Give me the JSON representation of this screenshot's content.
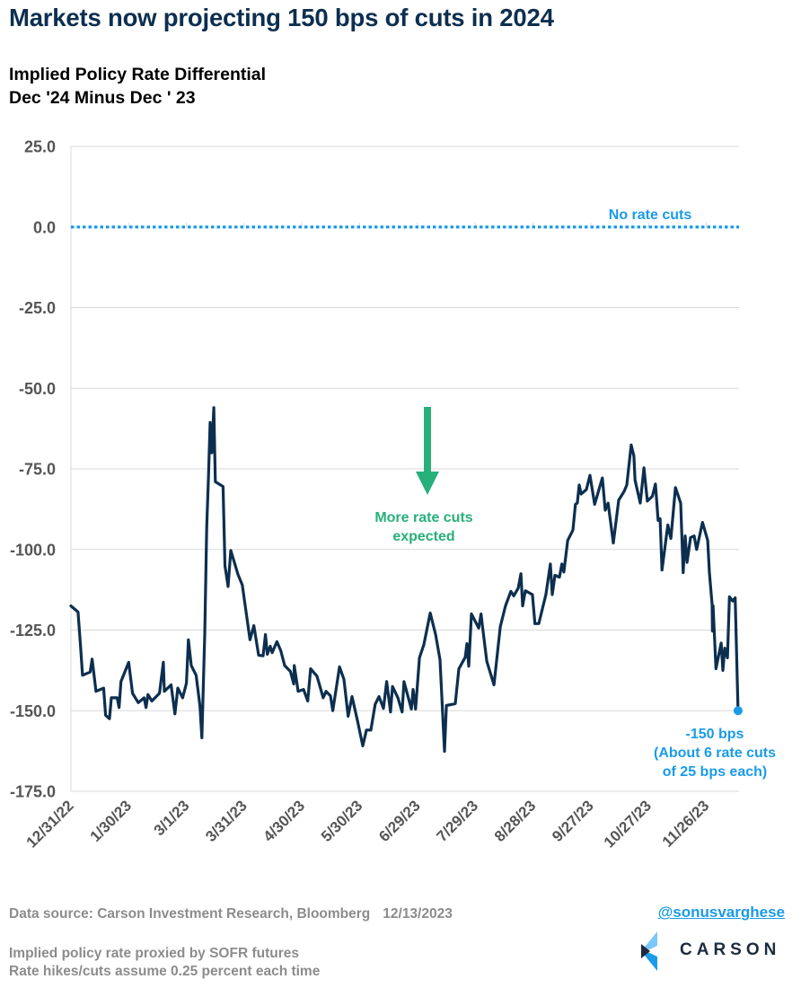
{
  "header": {
    "title": "Markets now projecting 150 bps of cuts in 2024",
    "subtitle_line1": "Implied Policy Rate Differential",
    "subtitle_line2": "Dec '24 Minus Dec ' 23"
  },
  "footer": {
    "source": "Data source: Carson Investment Research, Bloomberg",
    "date": "12/13/2023",
    "note1": "Implied policy rate proxied by SOFR futures",
    "note2": "Rate hikes/cuts assume 0.25 percent each time",
    "handle": "@sonusvarghese",
    "logo_text": "CARSON",
    "logo_icon": "carson-chevron-logo-icon"
  },
  "colors": {
    "title": "#0d2f4f",
    "line": "#0d2f4f",
    "reference": "#1a9be8",
    "annotation_green": "#27b07a",
    "gridline": "#d9d9d9",
    "tick_text": "#555555"
  },
  "chart_data": {
    "type": "line",
    "title": "Implied Policy Rate Differential",
    "subtitle": "Dec '24 Minus Dec ' 23",
    "xlabel": "",
    "ylabel": "",
    "x_unit": "days since 12/31/22",
    "start_date": "12/31/22",
    "end_date": "12/13/23",
    "xlim": [
      0,
      347
    ],
    "ylim": [
      -175,
      25
    ],
    "grid": true,
    "yticks": [
      25,
      0,
      -25,
      -50,
      -75,
      -100,
      -125,
      -150,
      -175
    ],
    "ytick_labels": [
      "25.0",
      "0.0",
      "-25.0",
      "-50.0",
      "-75.0",
      "-100.0",
      "-125.0",
      "-150.0",
      "-175.0"
    ],
    "xticks": [
      0,
      30,
      60,
      90,
      120,
      150,
      180,
      210,
      240,
      270,
      300,
      330
    ],
    "xtick_labels": [
      "12/31/22",
      "1/30/23",
      "3/1/23",
      "3/31/23",
      "4/30/23",
      "5/30/23",
      "6/29/23",
      "7/29/23",
      "8/28/23",
      "9/27/23",
      "10/27/23",
      "11/26/23"
    ],
    "reference_line": {
      "y": 0,
      "label": "No rate cuts",
      "style": "dotted"
    },
    "annotations": [
      {
        "text_line1": "More rate cuts",
        "text_line2": "expected",
        "type": "arrow-down"
      },
      {
        "text_line1": "-150 bps",
        "text_line2": "(About 6 rate cuts",
        "text_line3": "of 25 bps each)",
        "x": 346.5,
        "y": -150
      }
    ],
    "series": [
      {
        "name": "Implied Policy Rate Differential (bps)",
        "points": [
          [
            0,
            -117.5
          ],
          [
            3.7,
            -119.4
          ],
          [
            5,
            -130
          ],
          [
            6,
            -139
          ],
          [
            10,
            -138
          ],
          [
            11,
            -134
          ],
          [
            13,
            -144
          ],
          [
            17,
            -143
          ],
          [
            18,
            -151.4
          ],
          [
            20,
            -152.5
          ],
          [
            21,
            -146
          ],
          [
            24,
            -146
          ],
          [
            25,
            -149
          ],
          [
            26,
            -141
          ],
          [
            30,
            -135
          ],
          [
            32,
            -144.6
          ],
          [
            35,
            -147.5
          ],
          [
            38,
            -146
          ],
          [
            39,
            -149
          ],
          [
            40,
            -145
          ],
          [
            42,
            -147
          ],
          [
            46,
            -144.6
          ],
          [
            48,
            -135
          ],
          [
            48.5,
            -144
          ],
          [
            52,
            -142
          ],
          [
            54,
            -151
          ],
          [
            55.5,
            -143
          ],
          [
            58,
            -146
          ],
          [
            60,
            -141.5
          ],
          [
            61,
            -128
          ],
          [
            62.5,
            -136
          ],
          [
            65,
            -139
          ],
          [
            67,
            -148.6
          ],
          [
            68,
            -158.4
          ],
          [
            69.5,
            -126.4
          ],
          [
            70.5,
            -93
          ],
          [
            71.4,
            -78
          ],
          [
            72.3,
            -60.6
          ],
          [
            73.2,
            -70
          ],
          [
            74.2,
            -56
          ],
          [
            75,
            -79
          ],
          [
            79,
            -80.5
          ],
          [
            80,
            -105
          ],
          [
            81.6,
            -111.5
          ],
          [
            83,
            -100.3
          ],
          [
            86.8,
            -107.8
          ],
          [
            89,
            -111
          ],
          [
            93,
            -128
          ],
          [
            95,
            -123.6
          ],
          [
            97.5,
            -132.8
          ],
          [
            99.8,
            -133
          ],
          [
            101,
            -126.4
          ],
          [
            102,
            -132.5
          ],
          [
            103.5,
            -130
          ],
          [
            104.5,
            -132
          ],
          [
            107,
            -128.6
          ],
          [
            109,
            -131.4
          ],
          [
            111,
            -136
          ],
          [
            114,
            -137.8
          ],
          [
            115.7,
            -141.7
          ],
          [
            116,
            -136
          ],
          [
            118,
            -144
          ],
          [
            120.8,
            -143.4
          ],
          [
            123,
            -147
          ],
          [
            124.5,
            -137
          ],
          [
            127.8,
            -139.3
          ],
          [
            131,
            -146
          ],
          [
            132.5,
            -144
          ],
          [
            134.8,
            -145.4
          ],
          [
            136,
            -150
          ],
          [
            139.5,
            -136.4
          ],
          [
            141.8,
            -140.3
          ],
          [
            144,
            -151.7
          ],
          [
            146,
            -145.6
          ],
          [
            148.8,
            -153
          ],
          [
            151.6,
            -160.9
          ],
          [
            153.5,
            -156
          ],
          [
            155.8,
            -156
          ],
          [
            158,
            -148
          ],
          [
            160,
            -145.6
          ],
          [
            162.3,
            -149.3
          ],
          [
            164,
            -141
          ],
          [
            166,
            -150.4
          ],
          [
            167,
            -142.5
          ],
          [
            169.8,
            -146
          ],
          [
            172,
            -150.4
          ],
          [
            173,
            -141
          ],
          [
            176.8,
            -149.5
          ],
          [
            177.7,
            -143.4
          ],
          [
            179,
            -149.5
          ],
          [
            181,
            -133.6
          ],
          [
            183.3,
            -129.5
          ],
          [
            186.6,
            -119.7
          ],
          [
            189.4,
            -126.4
          ],
          [
            191.7,
            -134.2
          ],
          [
            194,
            -162.6
          ],
          [
            195,
            -148.4
          ],
          [
            199.6,
            -147.8
          ],
          [
            201.5,
            -137
          ],
          [
            204.8,
            -133.4
          ],
          [
            205.7,
            -129.2
          ],
          [
            206.6,
            -136.2
          ],
          [
            208,
            -120
          ],
          [
            211.8,
            -124.4
          ],
          [
            213,
            -120
          ],
          [
            214,
            -125
          ],
          [
            216,
            -134.7
          ],
          [
            219.7,
            -142
          ],
          [
            223,
            -124
          ],
          [
            225.7,
            -117.5
          ],
          [
            228.5,
            -113
          ],
          [
            230,
            -114.4
          ],
          [
            232.3,
            -112
          ],
          [
            233.7,
            -107.5
          ],
          [
            234.6,
            -117.5
          ],
          [
            236,
            -112.8
          ],
          [
            239.7,
            -114
          ],
          [
            241,
            -123
          ],
          [
            243,
            -123
          ],
          [
            246.7,
            -114
          ],
          [
            249,
            -104.5
          ],
          [
            250,
            -114
          ],
          [
            251.4,
            -108
          ],
          [
            253.7,
            -108.6
          ],
          [
            255,
            -104.5
          ],
          [
            256,
            -107
          ],
          [
            258,
            -97.2
          ],
          [
            260.7,
            -94
          ],
          [
            262,
            -86
          ],
          [
            263,
            -85.6
          ],
          [
            264,
            -80
          ],
          [
            265,
            -82.8
          ],
          [
            267.7,
            -81.4
          ],
          [
            269.6,
            -77
          ],
          [
            272,
            -86
          ],
          [
            276,
            -77.8
          ],
          [
            277.5,
            -87.8
          ],
          [
            279,
            -85.6
          ],
          [
            281.7,
            -98
          ],
          [
            284.5,
            -84.7
          ],
          [
            287.3,
            -82
          ],
          [
            288.7,
            -80
          ],
          [
            291,
            -67.6
          ],
          [
            292.4,
            -71
          ],
          [
            293,
            -78.5
          ],
          [
            295.7,
            -85.6
          ],
          [
            297.6,
            -74.7
          ],
          [
            299.4,
            -85
          ],
          [
            302,
            -83.5
          ],
          [
            303.6,
            -79.7
          ],
          [
            305,
            -91
          ],
          [
            306,
            -90.5
          ],
          [
            307,
            -106.4
          ],
          [
            310,
            -92.4
          ],
          [
            311.6,
            -96.6
          ],
          [
            314,
            -80.8
          ],
          [
            316.7,
            -85.6
          ],
          [
            318,
            -107.2
          ],
          [
            319,
            -95.8
          ],
          [
            320,
            -104
          ],
          [
            321.8,
            -96.3
          ],
          [
            323.7,
            -95.8
          ],
          [
            325,
            -100
          ],
          [
            328,
            -91.6
          ],
          [
            330.7,
            -97.2
          ],
          [
            331.6,
            -107.2
          ],
          [
            333,
            -117
          ],
          [
            333.2,
            -125.3
          ],
          [
            333.5,
            -117.5
          ],
          [
            335,
            -137
          ],
          [
            337.7,
            -129
          ],
          [
            338.6,
            -137.5
          ],
          [
            339.6,
            -130.6
          ],
          [
            341,
            -133.6
          ],
          [
            342,
            -114.7
          ],
          [
            343.7,
            -116
          ],
          [
            345,
            -115
          ],
          [
            346.5,
            -150
          ]
        ]
      }
    ]
  }
}
